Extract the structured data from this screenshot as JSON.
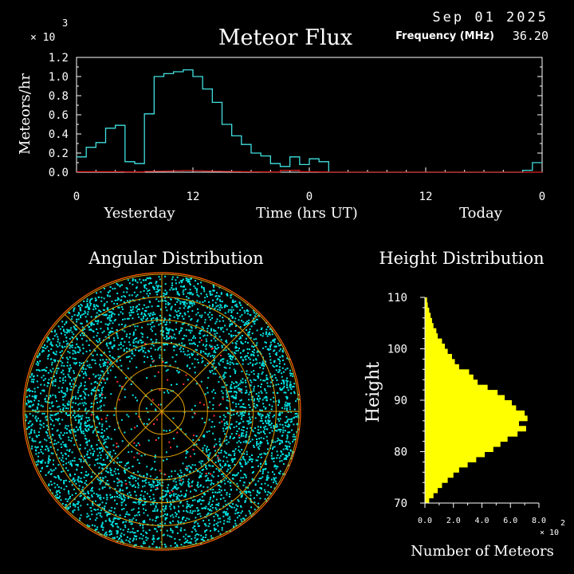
{
  "header": {
    "date": "Sep 01 2025",
    "frequency_label": "Frequency (MHz)",
    "frequency_value": "36.20"
  },
  "colors": {
    "background": "#000000",
    "axes": "#ffffff",
    "flux_main": "#40e0e0",
    "flux_secondary": "#e02020",
    "angular_points": "#00e5e5",
    "angular_points_secondary": "#ff3030",
    "angular_rings": "#e0a000",
    "angular_outer": "#ff6000",
    "height_fill": "#ffff00"
  },
  "chart_data": [
    {
      "type": "line",
      "style": "step",
      "title": "Meteor Flux",
      "ylabel": "Meteors/hr",
      "xlabel": "Time (hrs UT)",
      "y_multiplier_label": "× 10",
      "y_multiplier_exponent": "3",
      "ylim": [
        0,
        1.2
      ],
      "yticks": [
        "0.0",
        "0.2",
        "0.4",
        "0.6",
        "0.8",
        "1.0",
        "1.2"
      ],
      "xlim": [
        0,
        48
      ],
      "xticks": [
        {
          "x": 0,
          "label": "0"
        },
        {
          "x": 12,
          "label": "12"
        },
        {
          "x": 24,
          "label": "0"
        },
        {
          "x": 36,
          "label": "12"
        },
        {
          "x": 48,
          "label": "0"
        }
      ],
      "day_labels": [
        "Yesterday",
        "Today"
      ],
      "series": [
        {
          "values": [
            0.16,
            0.26,
            0.31,
            0.46,
            0.49,
            0.11,
            0.09,
            0.61,
            1.0,
            1.03,
            1.05,
            1.07,
            1.0,
            0.87,
            0.73,
            0.5,
            0.38,
            0.29,
            0.2,
            0.17,
            0.09,
            0.06,
            0.16,
            0.08,
            0.14,
            0.11,
            0.0,
            0.0,
            0.0,
            0.0,
            0.0,
            0.0,
            0.0,
            0.0,
            0.0,
            0.0,
            0.0,
            0.0,
            0.0,
            0.0,
            0.0,
            0.0,
            0.0,
            0.0,
            0.0,
            0.0,
            0.02,
            0.1
          ]
        },
        {
          "values": [
            0.005,
            0.005,
            0.005,
            0.005,
            0.005,
            0.003,
            0.003,
            0.008,
            0.01,
            0.012,
            0.015,
            0.017,
            0.015,
            0.012,
            0.01,
            0.008,
            0.006,
            0.005,
            0.004,
            0.003,
            0.002,
            0.02,
            0.02,
            0.005,
            0.004,
            0.003,
            0.0,
            0.0,
            0.0,
            0.0,
            0.0,
            0.0,
            0.0,
            0.0,
            0.0,
            0.0,
            0.0,
            0.0,
            0.0,
            0.0,
            0.0,
            0.0,
            0.0,
            0.0,
            0.0,
            0.0,
            0.0,
            0.0
          ]
        }
      ]
    },
    {
      "type": "scatter",
      "projection": "polar",
      "title": "Angular Distribution",
      "rings": 6,
      "radial_lines": 8
    },
    {
      "type": "bar",
      "orientation": "horizontal",
      "title": "Height Distribution",
      "ylabel": "Height",
      "xlabel": "Number of Meteors",
      "x_multiplier_label": "× 10",
      "x_multiplier_exponent": "2",
      "xlim": [
        0,
        8.0
      ],
      "xticks": [
        "0.0",
        "2.0",
        "4.0",
        "6.0",
        "8.0"
      ],
      "ylim": [
        70,
        110
      ],
      "yticks": [
        "70",
        "80",
        "90",
        "100",
        "110"
      ],
      "heights": [
        70,
        71,
        72,
        73,
        74,
        75,
        76,
        77,
        78,
        79,
        80,
        81,
        82,
        83,
        84,
        85,
        86,
        87,
        88,
        89,
        90,
        91,
        92,
        93,
        94,
        95,
        96,
        97,
        98,
        99,
        100,
        101,
        102,
        103,
        104,
        105,
        106,
        107,
        108,
        109
      ],
      "values": [
        0.3,
        0.6,
        0.9,
        1.2,
        1.6,
        2.0,
        2.4,
        3.0,
        3.6,
        4.2,
        4.8,
        5.3,
        5.8,
        6.5,
        7.1,
        6.6,
        7.2,
        7.0,
        6.4,
        6.1,
        5.6,
        5.1,
        4.4,
        3.7,
        3.4,
        3.1,
        2.4,
        2.1,
        1.9,
        1.6,
        1.4,
        1.2,
        0.9,
        0.8,
        0.6,
        0.5,
        0.4,
        0.3,
        0.2,
        0.15
      ]
    }
  ]
}
